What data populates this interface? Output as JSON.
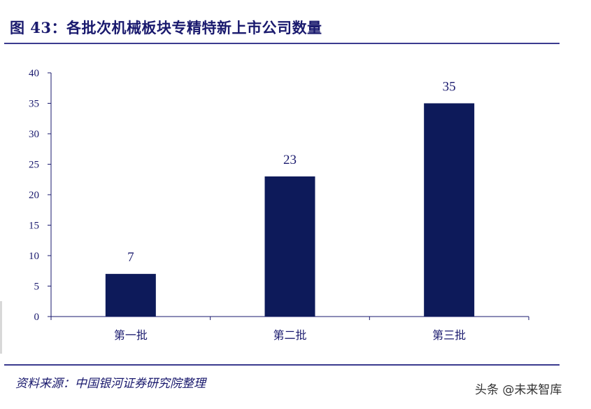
{
  "figure": {
    "title": "图 43：各批次机械板块专精特新上市公司数量",
    "source": "资料来源：中国银河证券研究院整理",
    "watermark": "头条 @未来智库"
  },
  "colors": {
    "bar": "#0d1a5a",
    "axis": "#1a1a6e",
    "rule": "#3b3b8f"
  },
  "chart_data": {
    "type": "bar",
    "categories": [
      "第一批",
      "第二批",
      "第三批"
    ],
    "values": [
      7,
      23,
      35
    ],
    "data_labels": [
      "7",
      "23",
      "35"
    ],
    "ylim": [
      0,
      40
    ],
    "yticks": [
      0,
      5,
      10,
      15,
      20,
      25,
      30,
      35,
      40
    ],
    "grid": false,
    "xlabel": "",
    "ylabel": ""
  }
}
